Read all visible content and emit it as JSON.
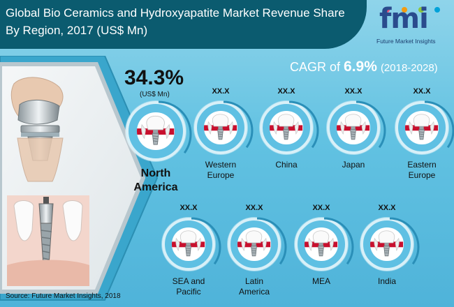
{
  "header": {
    "title": "Global Bio Ceramics and Hydroxyapatite Market Revenue Share By Region, 2017 (US$ Mn)"
  },
  "logo": {
    "text": "fmi",
    "tagline": "Future Market Insights"
  },
  "cagr": {
    "label": "CAGR of",
    "value": "6.9%",
    "period": "(2018-2028)"
  },
  "colors": {
    "header_band": "#0b5b6f",
    "background": "#62c2e2",
    "ring": "#d8f0f8",
    "gum": "#c8102e",
    "accent_blue": "#2a4b8d"
  },
  "chart_data": {
    "type": "table",
    "title": "Global Bio Ceramics and Hydroxyapatite Market Revenue Share By Region, 2017 (US$ Mn)",
    "unit": "(US$ Mn)",
    "regions": [
      {
        "name": "North America",
        "value_label": "34.3%",
        "value": 34.3
      },
      {
        "name": "Western Europe",
        "value_label": "XX.X",
        "value": null
      },
      {
        "name": "China",
        "value_label": "XX.X",
        "value": null
      },
      {
        "name": "Japan",
        "value_label": "XX.X",
        "value": null
      },
      {
        "name": "Eastern Europe",
        "value_label": "XX.X",
        "value": null
      },
      {
        "name": "SEA and Pacific",
        "value_label": "XX.X",
        "value": null
      },
      {
        "name": "Latin America",
        "value_label": "XX.X",
        "value": null
      },
      {
        "name": "MEA",
        "value_label": "XX.X",
        "value": null
      },
      {
        "name": "India",
        "value_label": "XX.X",
        "value": null
      }
    ]
  },
  "north_america": {
    "value": "34.3%",
    "unit": "(US$ Mn)",
    "line1": "North",
    "line2": "America"
  },
  "regions_top": [
    {
      "value": "XX.X",
      "line1": "Western",
      "line2": "Europe"
    },
    {
      "value": "XX.X",
      "line1": "China",
      "line2": ""
    },
    {
      "value": "XX.X",
      "line1": "Japan",
      "line2": ""
    },
    {
      "value": "XX.X",
      "line1": "Eastern",
      "line2": "Europe"
    }
  ],
  "regions_bottom": [
    {
      "value": "XX.X",
      "line1": "SEA and",
      "line2": "Pacific"
    },
    {
      "value": "XX.X",
      "line1": "Latin",
      "line2": "America"
    },
    {
      "value": "XX.X",
      "line1": "MEA",
      "line2": ""
    },
    {
      "value": "XX.X",
      "line1": "India",
      "line2": ""
    }
  ],
  "footer": {
    "source": "Source: Future Market Insights, 2018"
  }
}
